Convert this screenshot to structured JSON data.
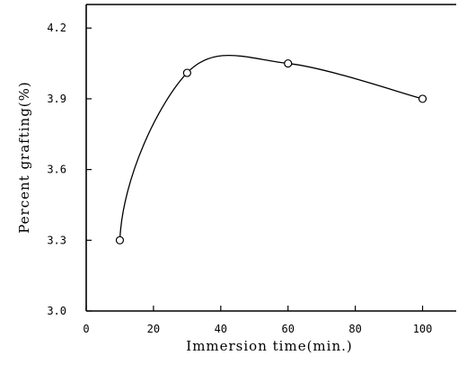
{
  "chart_data": {
    "type": "line",
    "xlabel": "Immersion time(min.)",
    "ylabel": "Percent grafting(%)",
    "xlim": [
      0,
      110
    ],
    "ylim": [
      3.0,
      4.3
    ],
    "xticks": [
      "0",
      "20",
      "40",
      "60",
      "80",
      "100"
    ],
    "yticks": [
      "3.0",
      "3.3",
      "3.6",
      "3.9",
      "4.2"
    ],
    "series": [
      {
        "x": [
          10,
          30,
          60,
          100
        ],
        "y": [
          3.3,
          4.01,
          4.05,
          3.9
        ],
        "marker": "open-circle",
        "line": "smooth"
      }
    ],
    "grid": false,
    "legend": "none"
  }
}
